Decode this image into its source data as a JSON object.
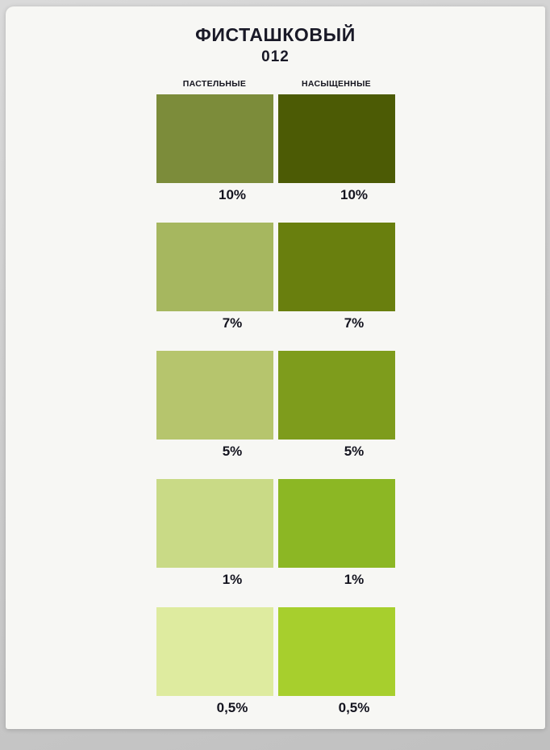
{
  "header": {
    "title": "ФИСТАШКОВЫЙ",
    "code": "012"
  },
  "columns": [
    {
      "label": "ПАСТЕЛЬНЫЕ"
    },
    {
      "label": "НАСЫЩЕННЫЕ"
    }
  ],
  "rows": [
    {
      "percent": "10%",
      "pastel": "#7c8c3a",
      "saturated": "#4c5b05"
    },
    {
      "percent": "7%",
      "pastel": "#a6b75f",
      "saturated": "#697f0e"
    },
    {
      "percent": "5%",
      "pastel": "#b6c56d",
      "saturated": "#7e9c1c"
    },
    {
      "percent": "1%",
      "pastel": "#c9da86",
      "saturated": "#8cb724"
    },
    {
      "percent": "0,5%",
      "pastel": "#deeb9f",
      "saturated": "#a7cf2d"
    }
  ],
  "chart_data": {
    "type": "table",
    "title": "ФИСТАШКОВЫЙ 012",
    "columns": [
      "ПАСТЕЛЬНЫЕ",
      "НАСЫЩЕННЫЕ"
    ],
    "rows": [
      {
        "percent": "10%",
        "pastel_hex": "#7c8c3a",
        "saturated_hex": "#4c5b05"
      },
      {
        "percent": "7%",
        "pastel_hex": "#a6b75f",
        "saturated_hex": "#697f0e"
      },
      {
        "percent": "5%",
        "pastel_hex": "#b6c56d",
        "saturated_hex": "#7e9c1c"
      },
      {
        "percent": "1%",
        "pastel_hex": "#c9da86",
        "saturated_hex": "#8cb724"
      },
      {
        "percent": "0,5%",
        "pastel_hex": "#deeb9f",
        "saturated_hex": "#a7cf2d"
      }
    ]
  }
}
